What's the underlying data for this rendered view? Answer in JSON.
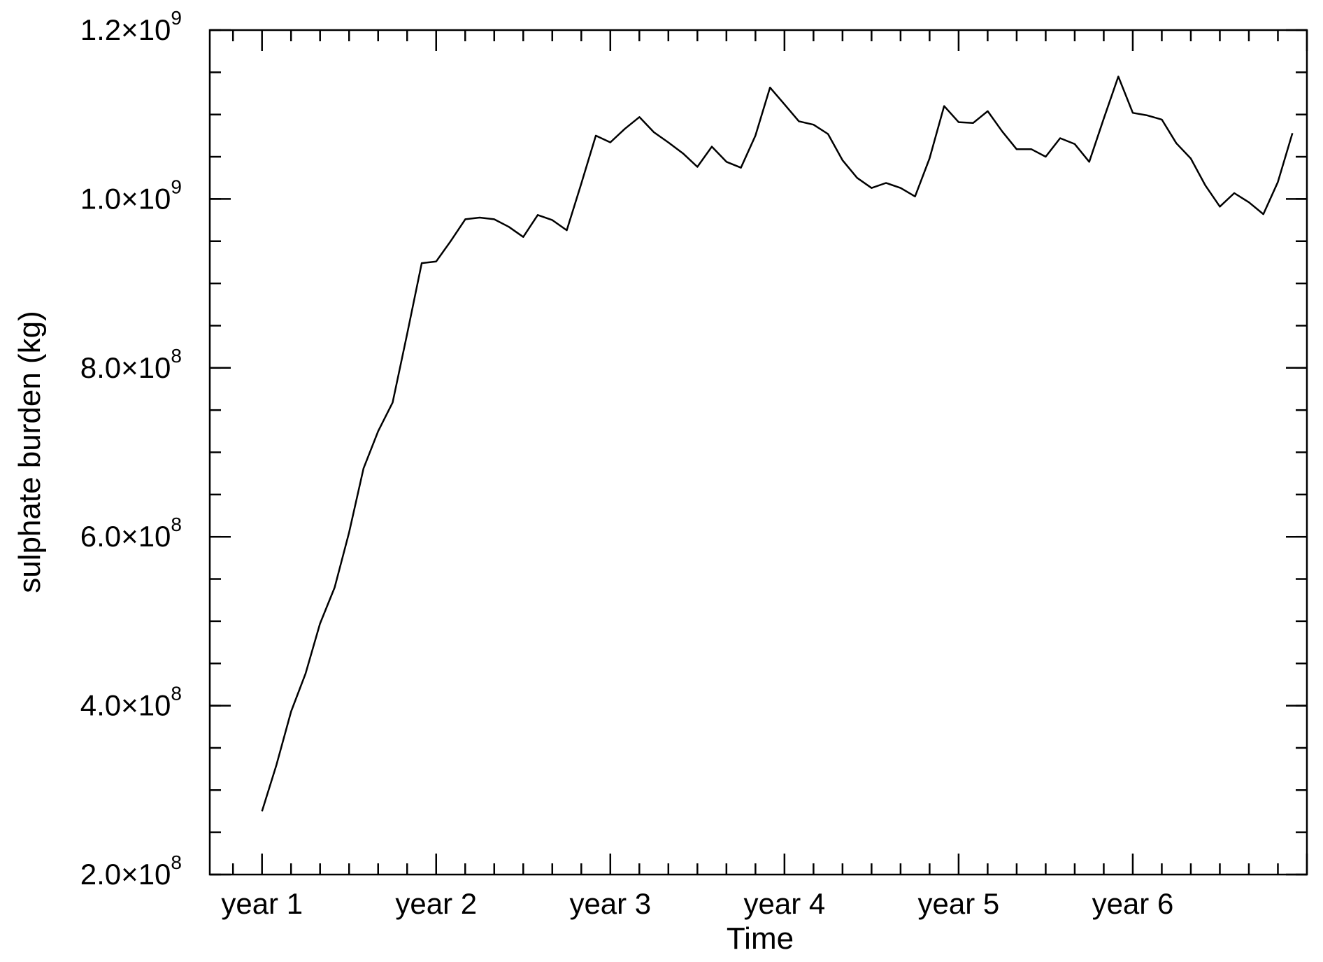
{
  "chart_data": {
    "type": "line",
    "title": "",
    "xlabel": "Time",
    "ylabel": "sulphate burden (kg)",
    "ylim": [
      200000000,
      1200000000
    ],
    "xlim": [
      0.7,
      7.0
    ],
    "x_tick_labels": [
      "year 1",
      "year 2",
      "year 3",
      "year 4",
      "year 5",
      "year 6"
    ],
    "x_tick_values": [
      1,
      2,
      3,
      4,
      5,
      6
    ],
    "y_tick_labels": [
      {
        "mantissa": "2.0",
        "times": "×10",
        "exp": "8"
      },
      {
        "mantissa": "4.0",
        "times": "×10",
        "exp": "8"
      },
      {
        "mantissa": "6.0",
        "times": "×10",
        "exp": "8"
      },
      {
        "mantissa": "8.0",
        "times": "×10",
        "exp": "8"
      },
      {
        "mantissa": "1.0",
        "times": "×10",
        "exp": "9"
      },
      {
        "mantissa": "1.2",
        "times": "×10",
        "exp": "9"
      }
    ],
    "y_tick_values": [
      200000000,
      400000000,
      600000000,
      800000000,
      1000000000,
      1200000000
    ],
    "grid": false,
    "series": [
      {
        "x": [
          1.0,
          1.083,
          1.167,
          1.25,
          1.333,
          1.417,
          1.5,
          1.583,
          1.667,
          1.75,
          1.833,
          1.917,
          2.0,
          2.083,
          2.167,
          2.25,
          2.333,
          2.417,
          2.5,
          2.583,
          2.667,
          2.75,
          2.833,
          2.917,
          3.0,
          3.083,
          3.167,
          3.25,
          3.333,
          3.417,
          3.5,
          3.583,
          3.667,
          3.75,
          3.833,
          3.917,
          4.0,
          4.083,
          4.167,
          4.25,
          4.333,
          4.417,
          4.5,
          4.583,
          4.667,
          4.75,
          4.833,
          4.917,
          5.0,
          5.083,
          5.167,
          5.25,
          5.333,
          5.417,
          5.5,
          5.583,
          5.667,
          5.75,
          5.833,
          5.917,
          6.0,
          6.083,
          6.167,
          6.25,
          6.333,
          6.417,
          6.5,
          6.583,
          6.667,
          6.75,
          6.833,
          6.917
        ],
        "values": [
          275000000,
          330000000,
          393000000,
          438000000,
          497000000,
          540000000,
          605000000,
          681000000,
          725000000,
          759000000,
          840000000,
          924000000,
          926000000,
          950000000,
          976000000,
          978000000,
          976000000,
          967000000,
          955000000,
          981000000,
          975000000,
          963000000,
          1018000000,
          1075000000,
          1067000000,
          1083000000,
          1097000000,
          1079000000,
          1067000000,
          1054000000,
          1038000000,
          1062000000,
          1044000000,
          1037000000,
          1075000000,
          1132000000,
          1112000000,
          1092000000,
          1088000000,
          1077000000,
          1046000000,
          1025000000,
          1013000000,
          1019000000,
          1013000000,
          1003000000,
          1048000000,
          1110000000,
          1091000000,
          1090000000,
          1104000000,
          1080000000,
          1059000000,
          1059000000,
          1050000000,
          1072000000,
          1065000000,
          1044000000,
          1095000000,
          1145000000,
          1102000000,
          1099000000,
          1094000000,
          1066000000,
          1048000000,
          1016000000,
          991000000,
          1007000000,
          996000000,
          982000000,
          1020000000,
          1078000000
        ]
      }
    ]
  }
}
